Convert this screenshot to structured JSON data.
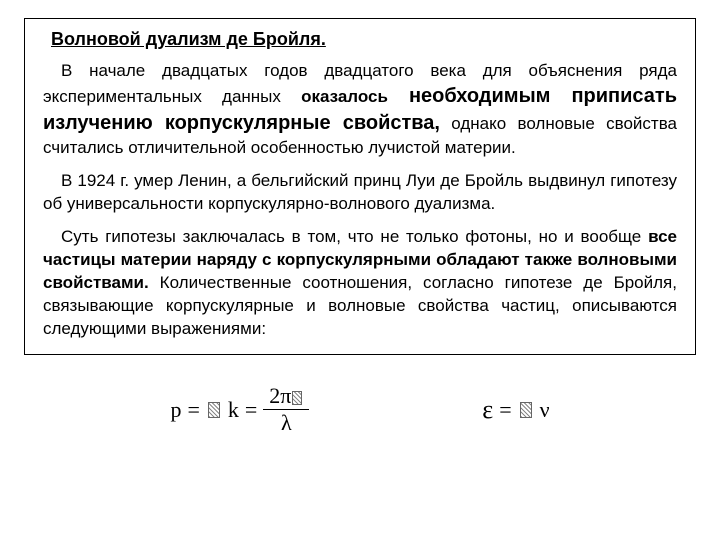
{
  "title": "Волновой дуализм де Бройля.",
  "p1_a": "В начале двадцатых годов двадцатого века для объяснения ряда экспериментальных данных ",
  "p1_b": "оказалось",
  "p1_c": " необходимым приписать излучению корпускулярные свойства,",
  "p1_d": " однако волновые свойства считались отличительной особенностью лучистой материи.",
  "p2": "В 1924 г. умер Ленин, а бельгийский принц Луи де Бройль выдвинул гипотезу об универсальности корпускулярно-волнового дуализма.",
  "p3_a": "Суть гипотезы заключалась в том, что не только фотоны, но и вообще ",
  "p3_b": "все частицы материи наряду с корпускулярными обладают также волновыми свойствами.",
  "p3_c": " Количественные соотношения, согласно гипотезе де Бройля, связывающие корпускулярные и волновые свойства частиц, описываются следующими выражениями:",
  "formula1": {
    "lhs": "p",
    "eq1": "=",
    "mid_sym": "ℏ",
    "mid_k": "k",
    "eq2": "=",
    "num_2": "2",
    "num_pi": "π",
    "den": "λ"
  },
  "formula2": {
    "lhs": "ε",
    "eq": "=",
    "sym": "ℏ",
    "nu": "ν"
  },
  "style": {
    "body_fontsize": 17,
    "big_fontsize": 20,
    "title_fontsize": 18,
    "formula_fontsize": 22,
    "text_color": "#000000",
    "bg_color": "#ffffff",
    "border_color": "#000000",
    "line_height": 1.35,
    "box_padding": "10px 18px 14px 18px",
    "body_padding": "18px 24px"
  }
}
